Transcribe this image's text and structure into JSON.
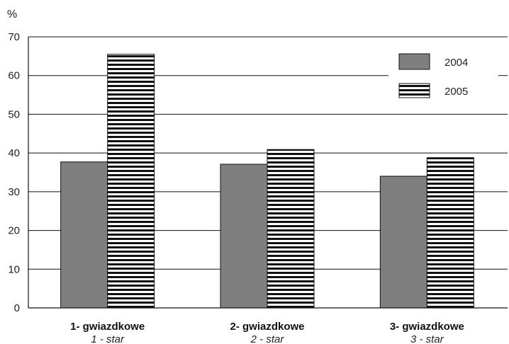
{
  "chart_data": {
    "type": "bar",
    "ylabel": "%",
    "ylim": [
      0,
      70
    ],
    "yticks": [
      0,
      10,
      20,
      30,
      40,
      50,
      60,
      70
    ],
    "grid": true,
    "legend_position": "top-right",
    "categories": [
      {
        "label": "1- gwiazdkowe",
        "sublabel": "1 - star"
      },
      {
        "label": "2- gwiazdkowe",
        "sublabel": "2 - star"
      },
      {
        "label": "3- gwiazdkowe",
        "sublabel": "3 - star"
      }
    ],
    "series": [
      {
        "name": "2004",
        "fill": "solid",
        "color": "#7f7f7f",
        "values": [
          37.7,
          37.1,
          34.0
        ]
      },
      {
        "name": "2005",
        "fill": "horizontal-stripes",
        "color": "#000000",
        "values": [
          65.5,
          40.9,
          38.8
        ]
      }
    ]
  }
}
